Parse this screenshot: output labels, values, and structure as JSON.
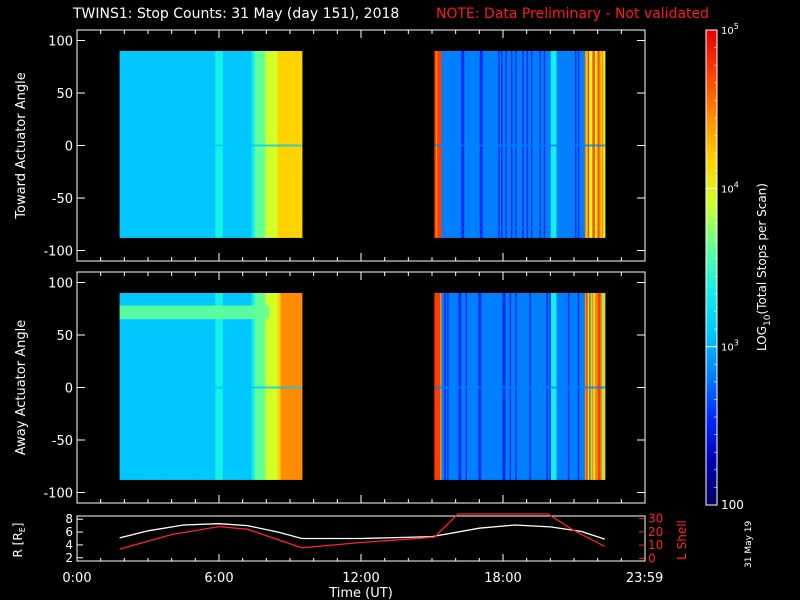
{
  "header": {
    "title": "TWINS1: Stop Counts: 31 May (day 151), 2018",
    "note": "NOTE: Data Preliminary - Not validated"
  },
  "date_stamp": "31 May 19",
  "chart_data": [
    {
      "type": "heatmap",
      "panel": "top",
      "ylabel": "Toward Actuator Angle",
      "ylim": [
        -110,
        110
      ],
      "y_ticks": [
        100,
        50,
        0,
        -50,
        -100
      ],
      "x_range_hours": [
        0,
        24
      ],
      "data_blocks": [
        {
          "start_hour": 1.8,
          "end_hour": 9.5,
          "angle_range": [
            -88,
            90
          ]
        },
        {
          "start_hour": 15.1,
          "end_hour": 22.3,
          "angle_range": [
            -88,
            90
          ]
        }
      ]
    },
    {
      "type": "heatmap",
      "panel": "middle",
      "ylabel": "Away Actuator Angle",
      "ylim": [
        -110,
        110
      ],
      "y_ticks": [
        100,
        50,
        0,
        -50,
        -100
      ],
      "x_range_hours": [
        0,
        24
      ],
      "data_blocks": [
        {
          "start_hour": 1.8,
          "end_hour": 9.5,
          "angle_range": [
            -88,
            90
          ]
        },
        {
          "start_hour": 15.1,
          "end_hour": 22.3,
          "angle_range": [
            -88,
            90
          ]
        }
      ]
    },
    {
      "type": "line",
      "panel": "orbit",
      "ylabel": "R [RE]",
      "y_ticks": [
        2,
        4,
        6,
        8
      ],
      "ylim": [
        1.5,
        8.5
      ],
      "y2label": "L Shell",
      "y2_ticks": [
        0,
        10,
        20,
        30
      ],
      "y2lim": [
        -2,
        32
      ],
      "xlabel": "Time (UT)",
      "x_ticks": [
        "0:00",
        "6:00",
        "12:00",
        "18:00",
        "23:59"
      ],
      "x_tick_hours": [
        0,
        6,
        12,
        18,
        23.983
      ],
      "series": [
        {
          "color": "#ffffff",
          "x": [
            1.8,
            3,
            4.5,
            6,
            7.2,
            8.5,
            9.5,
            12,
            15,
            17,
            18.5,
            20,
            21.3,
            22.3
          ],
          "y": [
            5.1,
            6.2,
            7.1,
            7.3,
            7.0,
            6.0,
            5.0,
            5.0,
            5.3,
            6.6,
            7.1,
            6.8,
            6.1,
            4.9
          ]
        },
        {
          "color": "#ff2222",
          "x": [
            1.8,
            4,
            6,
            7.2,
            9.5,
            12,
            15.1,
            16.1,
            19.9,
            20.9,
            22.3
          ],
          "y": [
            7,
            18,
            24,
            22,
            8,
            12,
            16,
            34,
            34,
            22,
            9
          ]
        }
      ]
    }
  ],
  "colorbar": {
    "label": "LOG10(Total Stops per Scan)",
    "tick_labels": [
      "10^5",
      "10^4",
      "10^3",
      "100"
    ],
    "colors": [
      "#00005a",
      "#0000b4",
      "#0028ff",
      "#0080ff",
      "#00c8ff",
      "#14f0e6",
      "#64ff96",
      "#d2ff28",
      "#ffd200",
      "#ff8c00",
      "#ff3c00",
      "#e60000"
    ]
  }
}
